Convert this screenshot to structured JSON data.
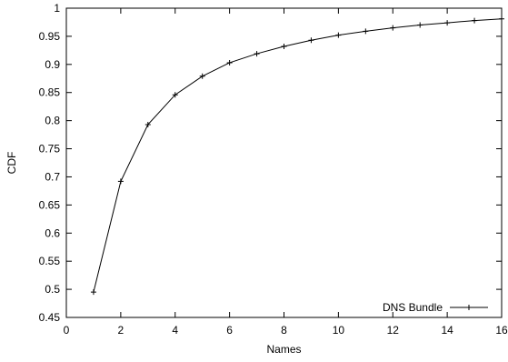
{
  "chart_data": {
    "type": "line",
    "xlabel": "Names",
    "ylabel": "CDF",
    "xlim": [
      0,
      16
    ],
    "ylim": [
      0.45,
      1
    ],
    "x_ticks": [
      "0",
      "2",
      "4",
      "6",
      "8",
      "10",
      "12",
      "14",
      "16"
    ],
    "y_ticks": [
      "0.45",
      "0.5",
      "0.55",
      "0.6",
      "0.65",
      "0.7",
      "0.75",
      "0.8",
      "0.85",
      "0.9",
      "0.95",
      "1"
    ],
    "grid": false,
    "legend_position": "bottom-right",
    "series": [
      {
        "name": "DNS Bundle",
        "color": "#000000",
        "marker": "plus",
        "x": [
          1,
          2,
          3,
          4,
          5,
          6,
          7,
          8,
          9,
          10,
          11,
          12,
          13,
          14,
          15,
          16
        ],
        "y": [
          0.495,
          0.692,
          0.793,
          0.846,
          0.879,
          0.903,
          0.919,
          0.932,
          0.943,
          0.952,
          0.959,
          0.965,
          0.97,
          0.974,
          0.978,
          0.981
        ]
      }
    ]
  }
}
